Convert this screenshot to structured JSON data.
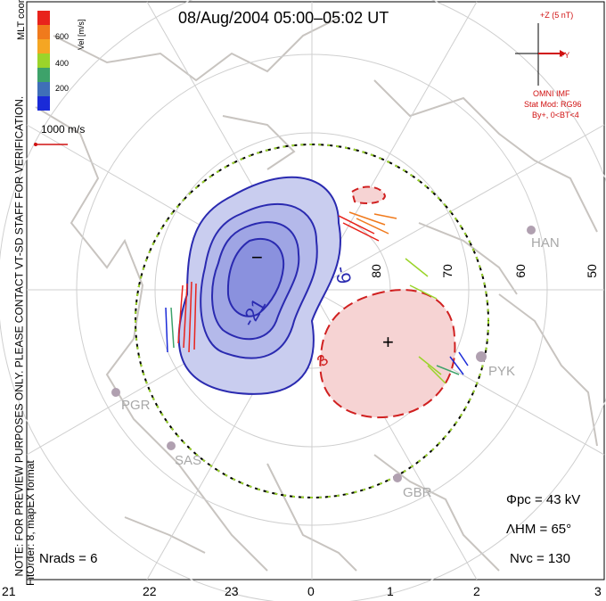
{
  "title": "08/Aug/2004 05:00–05:02 UT",
  "coords_label": "MLT coordinates",
  "note": "NOTE: FOR PREVIEW PURPOSES ONLY. PLEASE CONTACT VT-SD STAFF FOR VERIFICATION.",
  "fit_order": "FitOrder: 8, mapEX format",
  "colorbar": {
    "label": "Vel [m/s]",
    "ticks": [
      "600",
      "400",
      "200"
    ],
    "colors": [
      "#e8231c",
      "#f07a1c",
      "#f5a623",
      "#9bd42a",
      "#3da26a",
      "#3f6fb8",
      "#1a2ad8"
    ]
  },
  "scale_vector": "1000 m/s",
  "imf": {
    "title": "+Z (5 nT)",
    "y_label": "+Y",
    "source": "OMNI IMF",
    "stat_mod": "Stat Mod: RG96",
    "condition": "By+, 0<BT<4"
  },
  "stats": {
    "phi_pc": "Φpc = 43 kV",
    "lambda_hm": "ΛHM = 65°",
    "n_vc": "Nvc = 130",
    "n_rads": "Nrads = 6"
  },
  "mlt_ticks": [
    "21",
    "22",
    "23",
    "0",
    "1",
    "2",
    "3"
  ],
  "latitudes": [
    "80",
    "70",
    "60",
    "50"
  ],
  "contours": [
    "-9",
    "-21",
    "3"
  ],
  "extrema": [
    "−",
    "+"
  ],
  "stations": [
    "HAN",
    "PYK",
    "PGR",
    "SAS",
    "GBR"
  ],
  "colors": {
    "negative": "#2a2ab0",
    "positive": "#d02020",
    "neg_fill": "#c9cdef",
    "pos_fill": "#f6d3d3"
  }
}
